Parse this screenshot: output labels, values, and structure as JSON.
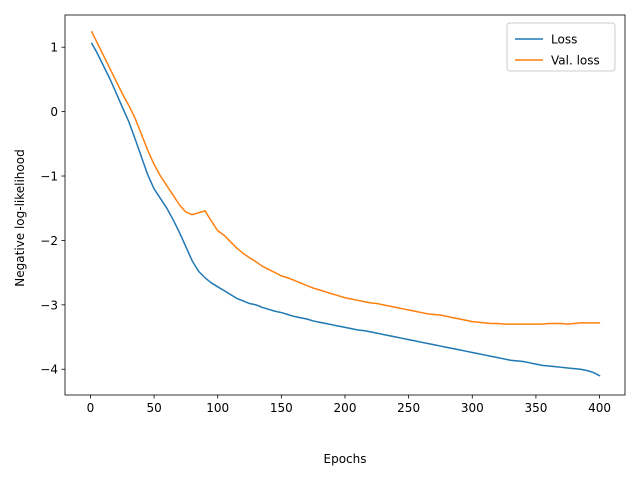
{
  "chart_data": {
    "type": "line",
    "xlabel": "Epochs",
    "ylabel": "Negative log-likelihood",
    "xlim": [
      -20,
      420
    ],
    "ylim": [
      -4.4,
      1.5
    ],
    "xticks": [
      0,
      50,
      100,
      150,
      200,
      250,
      300,
      350,
      400
    ],
    "xtick_labels": [
      "0",
      "50",
      "100",
      "150",
      "200",
      "250",
      "300",
      "350",
      "400"
    ],
    "yticks": [
      -4,
      -3,
      -2,
      -1,
      0,
      1
    ],
    "ytick_labels": [
      "−4",
      "−3",
      "−2",
      "−1",
      "0",
      "1"
    ],
    "grid": false,
    "legend_position": "top-right",
    "series": [
      {
        "name": "Loss",
        "color": "#1f77b4",
        "x": [
          1,
          5,
          10,
          15,
          20,
          25,
          30,
          35,
          40,
          45,
          50,
          55,
          60,
          65,
          70,
          75,
          80,
          85,
          90,
          95,
          100,
          105,
          110,
          115,
          120,
          125,
          130,
          135,
          140,
          145,
          150,
          155,
          160,
          165,
          170,
          175,
          180,
          185,
          190,
          195,
          200,
          205,
          210,
          215,
          220,
          225,
          230,
          235,
          240,
          245,
          250,
          255,
          260,
          265,
          270,
          275,
          280,
          285,
          290,
          295,
          300,
          305,
          310,
          315,
          320,
          325,
          330,
          335,
          340,
          345,
          350,
          355,
          360,
          365,
          370,
          375,
          380,
          385,
          390,
          395,
          400
        ],
        "values": [
          1.06,
          0.92,
          0.72,
          0.52,
          0.3,
          0.07,
          -0.15,
          -0.42,
          -0.7,
          -0.98,
          -1.2,
          -1.35,
          -1.5,
          -1.68,
          -1.88,
          -2.1,
          -2.32,
          -2.48,
          -2.58,
          -2.66,
          -2.72,
          -2.78,
          -2.84,
          -2.9,
          -2.94,
          -2.98,
          -3.0,
          -3.04,
          -3.07,
          -3.1,
          -3.12,
          -3.15,
          -3.18,
          -3.2,
          -3.22,
          -3.25,
          -3.27,
          -3.29,
          -3.31,
          -3.33,
          -3.35,
          -3.37,
          -3.39,
          -3.4,
          -3.42,
          -3.44,
          -3.46,
          -3.48,
          -3.5,
          -3.52,
          -3.54,
          -3.56,
          -3.58,
          -3.6,
          -3.62,
          -3.64,
          -3.66,
          -3.68,
          -3.7,
          -3.72,
          -3.74,
          -3.76,
          -3.78,
          -3.8,
          -3.82,
          -3.84,
          -3.86,
          -3.87,
          -3.88,
          -3.9,
          -3.92,
          -3.94,
          -3.95,
          -3.96,
          -3.97,
          -3.98,
          -3.99,
          -4.0,
          -4.02,
          -4.05,
          -4.1
        ]
      },
      {
        "name": "Val. loss",
        "color": "#ff7f0e",
        "x": [
          1,
          5,
          10,
          15,
          20,
          25,
          30,
          35,
          40,
          45,
          50,
          55,
          60,
          65,
          70,
          75,
          80,
          85,
          90,
          95,
          100,
          105,
          110,
          115,
          120,
          125,
          130,
          135,
          140,
          145,
          150,
          155,
          160,
          165,
          170,
          175,
          180,
          185,
          190,
          195,
          200,
          205,
          210,
          215,
          220,
          225,
          230,
          235,
          240,
          245,
          250,
          255,
          260,
          265,
          270,
          275,
          280,
          285,
          290,
          295,
          300,
          305,
          310,
          315,
          320,
          325,
          330,
          335,
          340,
          345,
          350,
          355,
          360,
          365,
          370,
          375,
          380,
          385,
          390,
          395,
          400
        ],
        "values": [
          1.24,
          1.08,
          0.88,
          0.68,
          0.48,
          0.28,
          0.1,
          -0.1,
          -0.35,
          -0.6,
          -0.82,
          -1.0,
          -1.15,
          -1.3,
          -1.45,
          -1.56,
          -1.6,
          -1.57,
          -1.54,
          -1.7,
          -1.85,
          -1.92,
          -2.02,
          -2.12,
          -2.2,
          -2.27,
          -2.33,
          -2.4,
          -2.45,
          -2.5,
          -2.55,
          -2.58,
          -2.62,
          -2.66,
          -2.7,
          -2.74,
          -2.77,
          -2.8,
          -2.83,
          -2.86,
          -2.89,
          -2.91,
          -2.93,
          -2.95,
          -2.97,
          -2.98,
          -3.0,
          -3.02,
          -3.04,
          -3.06,
          -3.08,
          -3.1,
          -3.12,
          -3.14,
          -3.15,
          -3.16,
          -3.18,
          -3.2,
          -3.22,
          -3.24,
          -3.26,
          -3.27,
          -3.28,
          -3.29,
          -3.29,
          -3.3,
          -3.3,
          -3.3,
          -3.3,
          -3.3,
          -3.3,
          -3.3,
          -3.29,
          -3.29,
          -3.29,
          -3.3,
          -3.29,
          -3.28,
          -3.28,
          -3.28,
          -3.28
        ]
      }
    ]
  }
}
